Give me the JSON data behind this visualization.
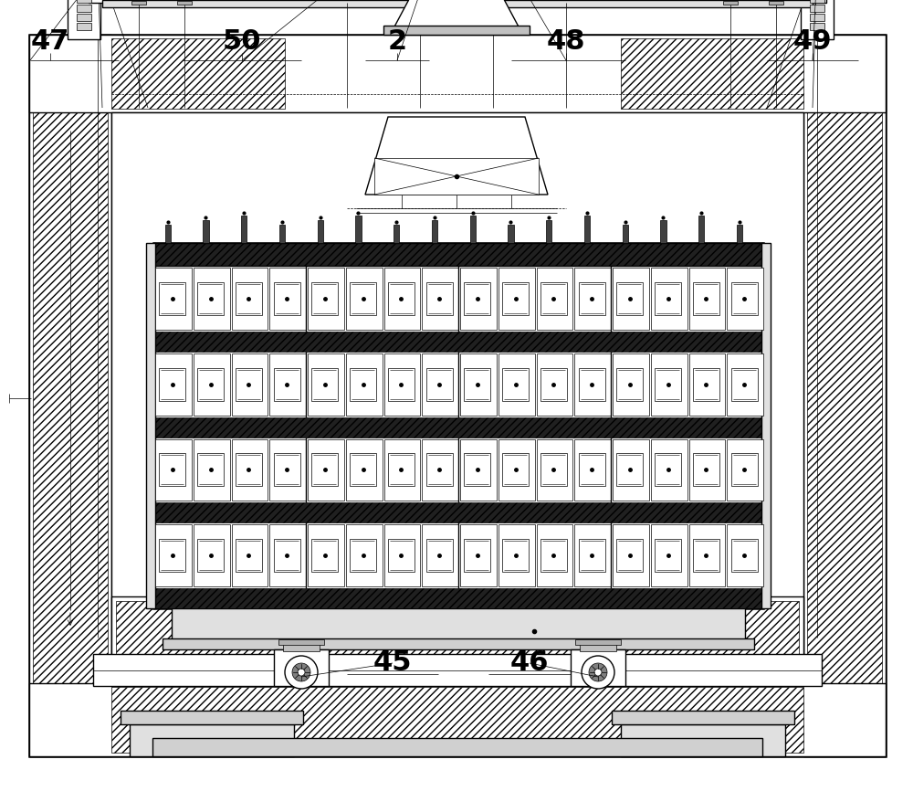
{
  "bg_color": "#ffffff",
  "lc": "#000000",
  "fig_width": 10.0,
  "fig_height": 8.66,
  "lw_thin": 0.5,
  "lw_med": 1.0,
  "lw_thick": 1.8,
  "lw_xthick": 2.5
}
